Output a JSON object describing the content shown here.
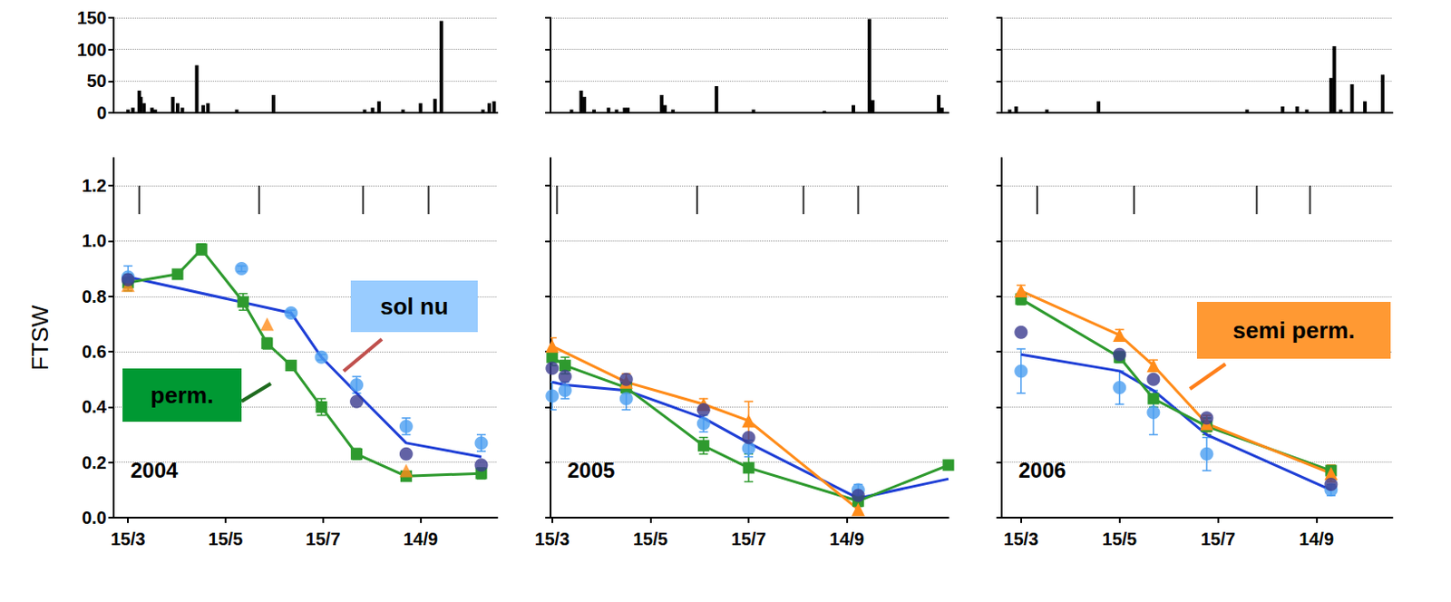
{
  "chart_data": [
    {
      "type": "bar",
      "color": "#000000",
      "grid": true,
      "tick_labels": "y",
      "xlim": [
        65,
        305
      ],
      "ylim": [
        0,
        150
      ],
      "yticks": [
        0,
        50,
        100,
        150
      ],
      "x": [
        74,
        77,
        81,
        82,
        84,
        89,
        91,
        102,
        105,
        108,
        117,
        121,
        124,
        142,
        165,
        222,
        227,
        231,
        246,
        257,
        266,
        270,
        296,
        300,
        303
      ],
      "values": [
        5,
        8,
        35,
        25,
        15,
        8,
        5,
        25,
        15,
        8,
        75,
        12,
        15,
        5,
        28,
        5,
        8,
        18,
        5,
        15,
        22,
        145,
        5,
        15,
        18
      ]
    },
    {
      "type": "line",
      "title": "2004",
      "y_label": "FTSW",
      "grid": true,
      "xlim": [
        65,
        305
      ],
      "xticks": [
        {
          "value": 74,
          "label": "15/3"
        },
        {
          "value": 135,
          "label": "15/5"
        },
        {
          "value": 196,
          "label": "15/7"
        },
        {
          "value": 257,
          "label": "14/9"
        }
      ],
      "ylim": [
        0,
        1.3
      ],
      "yticks": [
        {
          "value": 0,
          "label": "0.0"
        },
        0.2,
        0.4,
        0.6,
        0.8,
        {
          "value": 1,
          "label": "1.0"
        },
        1.2
      ],
      "stages": [
        81,
        156,
        221,
        262
      ],
      "annotations": [
        {
          "text": "perm.",
          "color": "#009933"
        },
        {
          "text": "sol nu",
          "color": "#99ccff"
        }
      ],
      "series": [
        {
          "type": "line",
          "marker": "square",
          "color": "#2e9a2e",
          "x": [
            74,
            105,
            120,
            146,
            161,
            176,
            195,
            217,
            248,
            295
          ],
          "values": [
            0.85,
            0.88,
            0.97,
            0.78,
            0.63,
            0.55,
            0.4,
            0.23,
            0.15,
            0.16
          ],
          "errors": [
            0.03,
            0.01,
            0.02,
            0.03,
            0.02,
            0.01,
            0.03,
            0.02,
            0.01,
            0.02
          ]
        },
        {
          "type": "scatter",
          "marker": "triangle",
          "color": "#ff8c1a",
          "x": [
            74,
            161,
            248
          ],
          "values": [
            0.84,
            0.7,
            0.17
          ]
        },
        {
          "type": "line",
          "marker": "none",
          "color": "#1f3fd6",
          "x": [
            74,
            176,
            195,
            217,
            248,
            295
          ],
          "values": [
            0.87,
            0.74,
            0.58,
            0.45,
            0.27,
            0.22
          ]
        },
        {
          "type": "scatter",
          "marker": "circle",
          "color": "#4a9df0",
          "x": [
            74,
            145,
            176,
            195,
            217,
            248,
            295
          ],
          "values": [
            0.87,
            0.9,
            0.74,
            0.58,
            0.48,
            0.33,
            0.27
          ],
          "errors": [
            0.04,
            0.01,
            0.01,
            0.01,
            0.03,
            0.03,
            0.03
          ]
        },
        {
          "type": "scatter",
          "marker": "circle",
          "color": "#3b3b8f",
          "x": [
            74,
            217,
            248,
            295
          ],
          "values": [
            0.86,
            0.42,
            0.23,
            0.19
          ]
        }
      ]
    },
    {
      "type": "bar",
      "color": "#000000",
      "grid": true,
      "tick_labels": false,
      "xlim": [
        73,
        320
      ],
      "ylim": [
        0,
        150
      ],
      "yticks": [
        0,
        50,
        100,
        150
      ],
      "x": [
        86,
        92,
        94,
        100,
        109,
        114,
        119,
        121,
        142,
        144,
        149,
        176,
        199,
        243,
        261,
        271,
        273,
        314,
        316
      ],
      "values": [
        5,
        35,
        25,
        5,
        8,
        5,
        8,
        8,
        28,
        12,
        5,
        42,
        5,
        3,
        12,
        148,
        20,
        28,
        8
      ]
    },
    {
      "type": "line",
      "title": "2005",
      "grid": true,
      "tick_labels": "x",
      "xlim": [
        73,
        320
      ],
      "xticks": [
        {
          "value": 74,
          "label": "15/3"
        },
        {
          "value": 135,
          "label": "15/5"
        },
        {
          "value": 196,
          "label": "15/7"
        },
        {
          "value": 257,
          "label": "14/9"
        }
      ],
      "ylim": [
        0,
        1.3
      ],
      "yticks": [
        {
          "value": 0,
          "label": "0.0"
        },
        0.2,
        0.4,
        0.6,
        0.8,
        {
          "value": 1,
          "label": "1.0"
        },
        1.2
      ],
      "stages": [
        77,
        164,
        230,
        264
      ],
      "annotations": [],
      "series": [
        {
          "type": "line",
          "marker": "square",
          "color": "#2e9a2e",
          "x": [
            74,
            82,
            120,
            168,
            196,
            264,
            320
          ],
          "values": [
            0.58,
            0.55,
            0.47,
            0.26,
            0.18,
            0.06,
            0.19
          ],
          "errors": [
            0.03,
            0.03,
            0.02,
            0.03,
            0.05,
            0.02,
            null
          ]
        },
        {
          "type": "line",
          "marker": "triangle",
          "color": "#ff8c1a",
          "x": [
            74,
            120,
            168,
            196,
            264
          ],
          "values": [
            0.62,
            0.49,
            0.41,
            0.35,
            0.03
          ],
          "errors": [
            0.03,
            0.03,
            0.02,
            0.07,
            0.02
          ]
        },
        {
          "type": "line",
          "marker": "none",
          "color": "#1f3fd6",
          "x": [
            74,
            82,
            120,
            168,
            196,
            264,
            320
          ],
          "values": [
            0.49,
            0.48,
            0.46,
            0.36,
            0.27,
            0.07,
            0.14
          ]
        },
        {
          "type": "scatter",
          "marker": "circle",
          "color": "#4a9df0",
          "x": [
            74,
            82,
            120,
            168,
            196,
            264
          ],
          "values": [
            0.44,
            0.46,
            0.43,
            0.34,
            0.25,
            0.1
          ],
          "errors": [
            0.05,
            0.03,
            0.04,
            0.03,
            0.03,
            0.02
          ]
        },
        {
          "type": "scatter",
          "marker": "circle",
          "color": "#3b3b8f",
          "x": [
            74,
            82,
            120,
            168,
            196,
            264
          ],
          "values": [
            0.54,
            0.51,
            0.5,
            0.39,
            0.29,
            0.08
          ]
        }
      ]
    },
    {
      "type": "bar",
      "color": "#000000",
      "grid": true,
      "tick_labels": false,
      "xlim": [
        62,
        304
      ],
      "ylim": [
        0,
        150
      ],
      "yticks": [
        0,
        50,
        100,
        150
      ],
      "x": [
        67,
        71,
        90,
        122,
        214,
        236,
        245,
        251,
        266,
        268,
        272,
        279,
        287,
        298
      ],
      "values": [
        5,
        10,
        5,
        18,
        5,
        10,
        10,
        5,
        55,
        105,
        5,
        45,
        18,
        60
      ]
    },
    {
      "type": "line",
      "title": "2006",
      "grid": true,
      "tick_labels": "x",
      "xlim": [
        62,
        304
      ],
      "xticks": [
        {
          "value": 74,
          "label": "15/3"
        },
        {
          "value": 135,
          "label": "15/5"
        },
        {
          "value": 196,
          "label": "15/7"
        },
        {
          "value": 257,
          "label": "14/9"
        }
      ],
      "ylim": [
        0,
        1.3
      ],
      "yticks": [
        {
          "value": 0,
          "label": "0.0"
        },
        0.2,
        0.4,
        0.6,
        0.8,
        {
          "value": 1,
          "label": "1.0"
        },
        1.2
      ],
      "stages": [
        84,
        144,
        220,
        253
      ],
      "annotations": [
        {
          "text": "semi perm.",
          "color": "#ff9933"
        }
      ],
      "series": [
        {
          "type": "line",
          "marker": "square",
          "color": "#2e9a2e",
          "x": [
            74,
            135,
            156,
            189,
            266
          ],
          "values": [
            0.79,
            0.58,
            0.43,
            0.33,
            0.17
          ],
          "errors": [
            0.02,
            0.02,
            0.03,
            0.03,
            0.02
          ]
        },
        {
          "type": "line",
          "marker": "triangle",
          "color": "#ff8c1a",
          "x": [
            74,
            135,
            156,
            189,
            266
          ],
          "values": [
            0.82,
            0.66,
            0.55,
            0.34,
            0.16
          ],
          "errors": [
            0.02,
            0.02,
            0.02,
            0.03,
            0.03
          ]
        },
        {
          "type": "line",
          "marker": "none",
          "color": "#1f3fd6",
          "x": [
            74,
            135,
            156,
            189,
            266
          ],
          "values": [
            0.59,
            0.53,
            0.46,
            0.3,
            0.1
          ]
        },
        {
          "type": "scatter",
          "marker": "circle",
          "color": "#4a9df0",
          "x": [
            74,
            135,
            156,
            189,
            266
          ],
          "values": [
            0.53,
            0.47,
            0.38,
            0.23,
            0.1
          ],
          "errors": [
            0.08,
            0.06,
            0.08,
            0.06,
            0.02
          ]
        },
        {
          "type": "scatter",
          "marker": "circle",
          "color": "#3b3b8f",
          "x": [
            74,
            135,
            156,
            189,
            266
          ],
          "values": [
            0.67,
            0.59,
            0.5,
            0.36,
            0.12
          ]
        }
      ]
    }
  ]
}
